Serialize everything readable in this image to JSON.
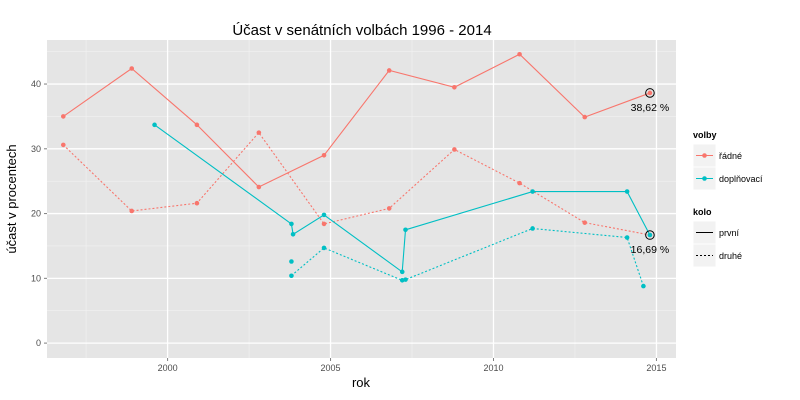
{
  "chart_data": {
    "type": "line",
    "title": "Účast v senátních volbách 1996 - 2014",
    "xlabel": "rok",
    "ylabel": "účast v procentech",
    "xlim": [
      1996.3,
      2015.6
    ],
    "ylim": [
      -2.3,
      46.8
    ],
    "x_ticks": [
      2000,
      2005,
      2010,
      2015
    ],
    "y_ticks": [
      0,
      10,
      20,
      30,
      40
    ],
    "grid": true,
    "legend_position": "right",
    "colors": {
      "radne": "#f8766d",
      "doplnovaci": "#00bfc4",
      "panel": "#e5e5e5",
      "grid": "#ffffff"
    },
    "legend": {
      "volby_title": "volby",
      "volby_items": [
        {
          "label": "řádné",
          "color": "#f8766d"
        },
        {
          "label": "doplňovací",
          "color": "#00bfc4"
        }
      ],
      "kolo_title": "kolo",
      "kolo_items": [
        {
          "label": "první",
          "dash": "solid"
        },
        {
          "label": "druhé",
          "dash": "dotted"
        }
      ]
    },
    "series": [
      {
        "name": "řádné",
        "kolo": "první",
        "color": "#f8766d",
        "dashed": false,
        "points": [
          [
            1996.8,
            35.0
          ],
          [
            1998.9,
            42.4
          ],
          [
            2000.9,
            33.7
          ],
          [
            2002.8,
            24.1
          ],
          [
            2004.8,
            29.0
          ],
          [
            2006.8,
            42.1
          ],
          [
            2008.8,
            39.5
          ],
          [
            2010.8,
            44.6
          ],
          [
            2012.8,
            34.9
          ],
          [
            2014.8,
            38.62
          ]
        ]
      },
      {
        "name": "řádné",
        "kolo": "druhé",
        "color": "#f8766d",
        "dashed": true,
        "points": [
          [
            1996.8,
            30.6
          ],
          [
            1998.9,
            20.4
          ],
          [
            2000.9,
            21.6
          ],
          [
            2002.8,
            32.5
          ],
          [
            2004.8,
            18.4
          ],
          [
            2006.8,
            20.8
          ],
          [
            2008.8,
            29.9
          ],
          [
            2010.8,
            24.7
          ],
          [
            2012.8,
            18.6
          ],
          [
            2014.8,
            16.69
          ]
        ]
      },
      {
        "name": "doplňovací",
        "kolo": "první",
        "color": "#00bfc4",
        "dashed": false,
        "points": [
          [
            1999.6,
            33.7
          ],
          [
            2003.8,
            18.4
          ],
          [
            2003.85,
            16.8
          ],
          [
            2004.8,
            19.8
          ],
          [
            2007.2,
            11.0
          ],
          [
            2007.3,
            17.5
          ],
          [
            2011.2,
            23.4
          ],
          [
            2014.1,
            23.4
          ],
          [
            2014.8,
            16.69
          ]
        ]
      },
      {
        "name": "doplňovací",
        "kolo": "druhé",
        "color": "#00bfc4",
        "dashed": true,
        "points": [
          [
            2003.8,
            12.6
          ]
        ]
      },
      {
        "name": "doplňovací",
        "kolo": "druhé",
        "color": "#00bfc4",
        "dashed": true,
        "points": [
          [
            2003.8,
            10.4
          ],
          [
            2004.8,
            14.7
          ],
          [
            2007.2,
            9.7
          ],
          [
            2007.3,
            9.8
          ],
          [
            2011.2,
            17.7
          ],
          [
            2014.1,
            16.3
          ],
          [
            2014.6,
            8.8
          ]
        ]
      }
    ],
    "annotations": [
      {
        "text": "38,62 %",
        "x": 2014.8,
        "y": 38.62
      },
      {
        "text": "16,69 %",
        "x": 2014.8,
        "y": 16.69
      }
    ]
  }
}
